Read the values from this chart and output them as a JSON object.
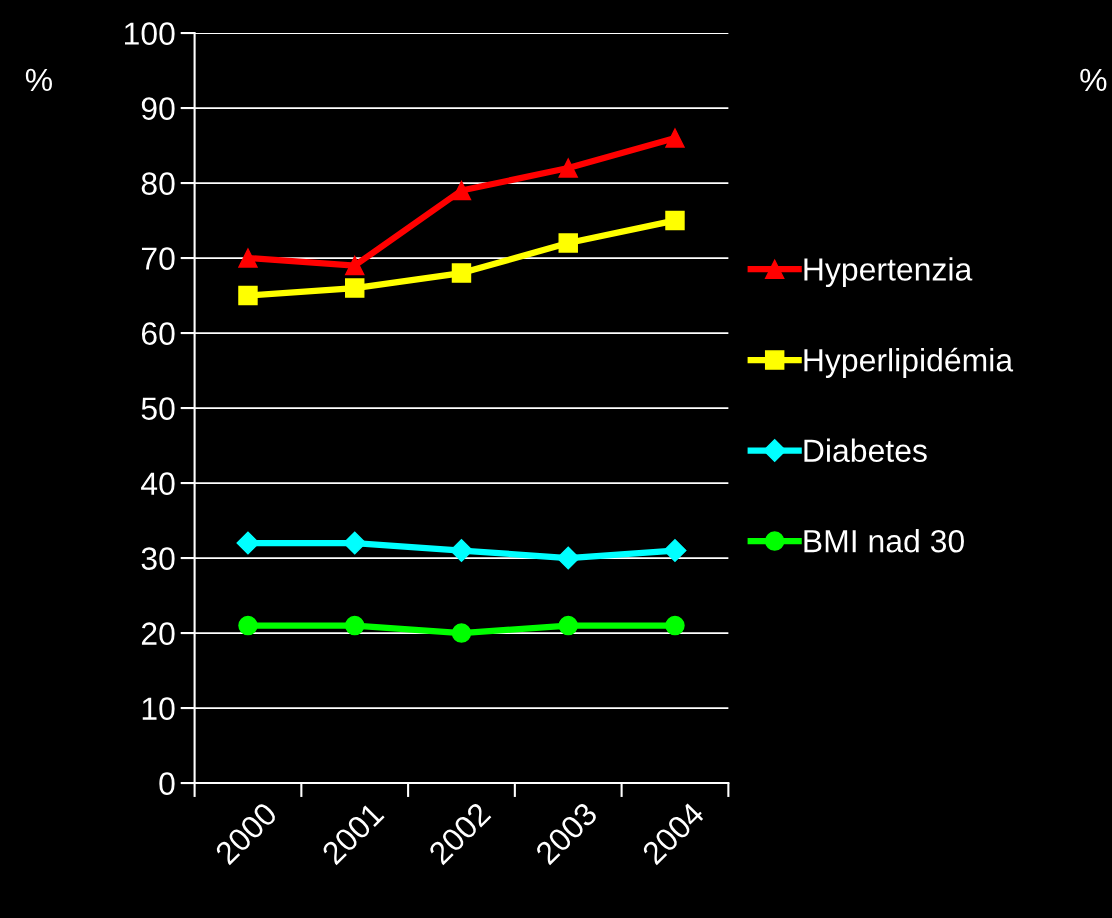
{
  "chart_data": {
    "type": "line",
    "ylabel": "%",
    "categories": [
      "2000",
      "2001",
      "2002",
      "2003",
      "2004"
    ],
    "series": [
      {
        "name": "Hypertenzia",
        "color": "#ff0000",
        "marker": "triangle",
        "values": [
          70,
          69,
          79,
          82,
          86
        ]
      },
      {
        "name": "Hyperlipidémia",
        "color": "#ffff00",
        "marker": "square",
        "values": [
          65,
          66,
          68,
          72,
          75
        ]
      },
      {
        "name": "Diabetes",
        "color": "#00ffff",
        "marker": "diamond",
        "values": [
          32,
          32,
          31,
          30,
          31
        ]
      },
      {
        "name": "BMI nad 30",
        "color": "#00ff00",
        "marker": "circle",
        "values": [
          21,
          21,
          20,
          21,
          21
        ]
      }
    ],
    "ylim": [
      0,
      100
    ],
    "yticks": [
      0,
      10,
      20,
      30,
      40,
      50,
      60,
      70,
      80,
      90,
      100
    ],
    "grid": "y",
    "legend": "right",
    "annotations": [
      "%"
    ]
  }
}
